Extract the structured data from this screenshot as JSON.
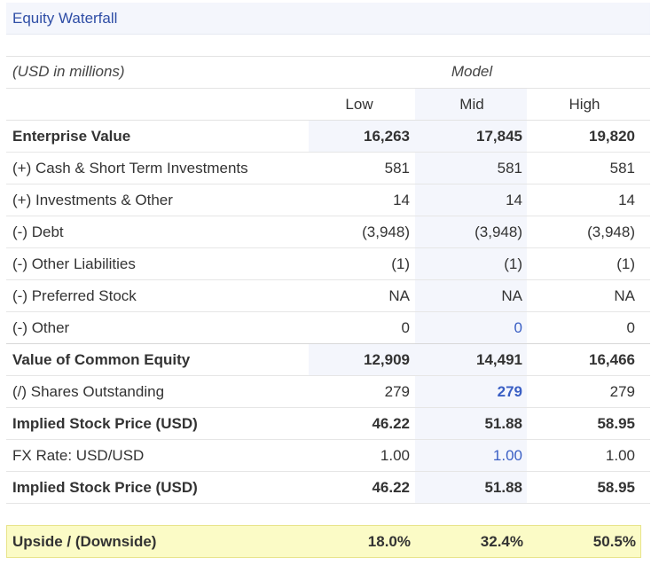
{
  "header": {
    "title": "Equity Waterfall"
  },
  "units_label": "(USD in millions)",
  "model_label": "Model",
  "columns": [
    "Low",
    "Mid",
    "High"
  ],
  "rows": [
    {
      "label": "Enterprise Value",
      "values": [
        "16,263",
        "17,845",
        "19,820"
      ]
    },
    {
      "label": "(+) Cash & Short Term Investments",
      "values": [
        "581",
        "581",
        "581"
      ]
    },
    {
      "label": "(+) Investments & Other",
      "values": [
        "14",
        "14",
        "14"
      ]
    },
    {
      "label": "(-) Debt",
      "values": [
        "(3,948)",
        "(3,948)",
        "(3,948)"
      ]
    },
    {
      "label": "(-) Other Liabilities",
      "values": [
        "(1)",
        "(1)",
        "(1)"
      ]
    },
    {
      "label": "(-) Preferred Stock",
      "values": [
        "NA",
        "NA",
        "NA"
      ]
    },
    {
      "label": "(-) Other",
      "values": [
        "0",
        "0",
        "0"
      ]
    },
    {
      "label": "Value of Common Equity",
      "values": [
        "12,909",
        "14,491",
        "16,466"
      ]
    },
    {
      "label": "(/) Shares Outstanding",
      "values": [
        "279",
        "279",
        "279"
      ]
    },
    {
      "label": "Implied Stock Price (USD)",
      "values": [
        "46.22",
        "51.88",
        "58.95"
      ]
    },
    {
      "label": "FX Rate: USD/USD",
      "values": [
        "1.00",
        "1.00",
        "1.00"
      ]
    },
    {
      "label": "Implied Stock Price (USD)",
      "values": [
        "46.22",
        "51.88",
        "58.95"
      ]
    }
  ],
  "upside": {
    "label": "Upside / (Downside)",
    "values": [
      "18.0%",
      "32.4%",
      "50.5%"
    ]
  },
  "colors": {
    "title_blue": "#2f4ea6",
    "input_blue": "#3a5fc4",
    "highlight_yellow": "#fbfbc6"
  }
}
